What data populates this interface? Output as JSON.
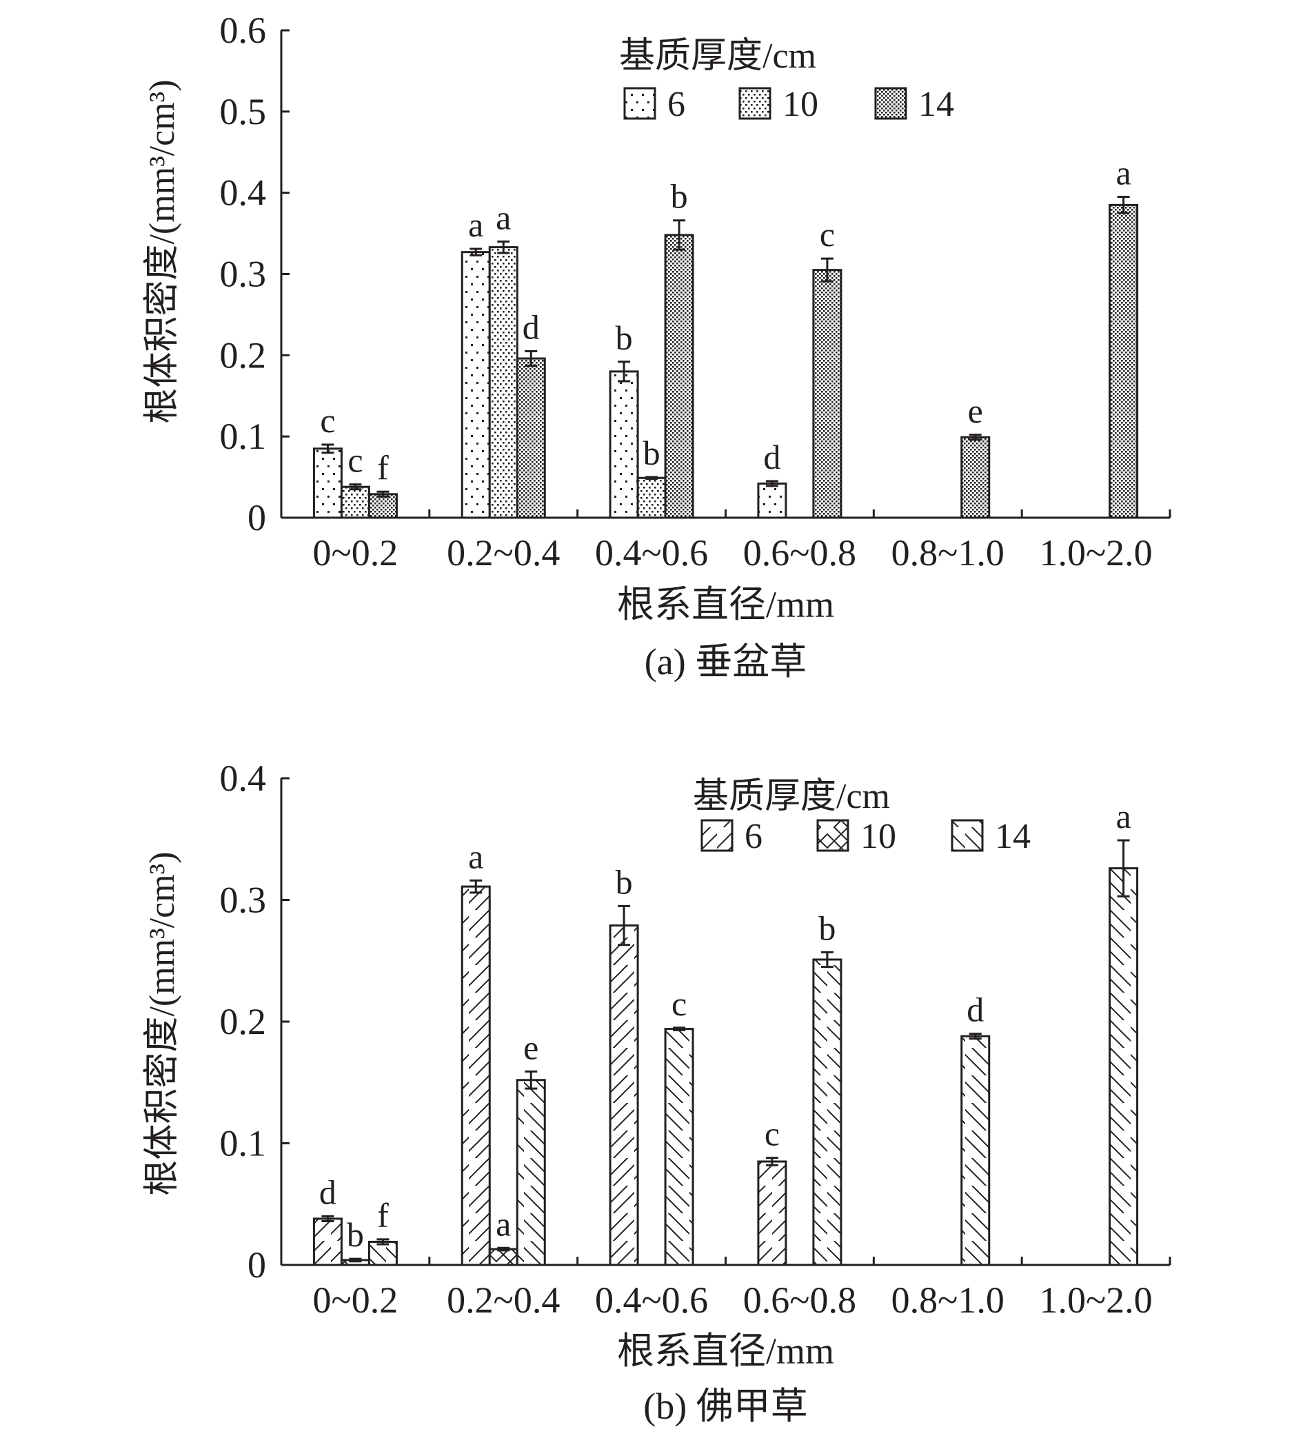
{
  "chart_data": [
    {
      "type": "bar",
      "caption": "(a) 垂盆草",
      "xlabel": "根系直径/mm",
      "ylabel": "根体积密度/(mm³/cm³)",
      "ylim": [
        0,
        0.6
      ],
      "yticks": [
        "0",
        "0.1",
        "0.2",
        "0.3",
        "0.4",
        "0.5",
        "0.6"
      ],
      "categories": [
        "0~0.2",
        "0.2~0.4",
        "0.4~0.6",
        "0.6~0.8",
        "0.8~1.0",
        "1.0~2.0"
      ],
      "legend_title": "基质厚度/cm",
      "legend_placement": "top-center",
      "series": [
        {
          "name": "6",
          "pattern": "dots-sparse",
          "values": [
            0.085,
            0.327,
            0.18,
            0.042,
            null,
            null
          ],
          "errors": [
            0.005,
            0.004,
            0.012,
            0.003,
            null,
            null
          ],
          "letters": [
            "c",
            "a",
            "b",
            "d",
            null,
            null
          ]
        },
        {
          "name": "10",
          "pattern": "dots-medium",
          "values": [
            0.038,
            0.333,
            0.049,
            null,
            null,
            null
          ],
          "errors": [
            0.003,
            0.007,
            0.001,
            null,
            null,
            null
          ],
          "letters": [
            "c",
            "a",
            "b",
            null,
            null,
            null
          ]
        },
        {
          "name": "14",
          "pattern": "dots-dense",
          "values": [
            0.029,
            0.196,
            0.348,
            0.305,
            0.099,
            0.385
          ],
          "errors": [
            0.003,
            0.009,
            0.018,
            0.014,
            0.003,
            0.01
          ],
          "letters": [
            "f",
            "d",
            "b",
            "c",
            "e",
            "a"
          ]
        }
      ]
    },
    {
      "type": "bar",
      "caption": "(b) 佛甲草",
      "xlabel": "根系直径/mm",
      "ylabel": "根体积密度/(mm³/cm³)",
      "ylim": [
        0,
        0.4
      ],
      "yticks": [
        "0",
        "0.1",
        "0.2",
        "0.3",
        "0.4"
      ],
      "categories": [
        "0~0.2",
        "0.2~0.4",
        "0.4~0.6",
        "0.6~0.8",
        "0.8~1.0",
        "1.0~2.0"
      ],
      "legend_title": "基质厚度/cm",
      "legend_placement": "top-center",
      "series": [
        {
          "name": "6",
          "pattern": "hatch-forward",
          "values": [
            0.038,
            0.311,
            0.279,
            0.085,
            null,
            null
          ],
          "errors": [
            0.002,
            0.005,
            0.016,
            0.003,
            null,
            null
          ],
          "letters": [
            "d",
            "a",
            "b",
            "c",
            null,
            null
          ]
        },
        {
          "name": "10",
          "pattern": "hatch-cross",
          "values": [
            0.004,
            0.013,
            null,
            null,
            null,
            null
          ],
          "errors": [
            0.001,
            0.001,
            null,
            null,
            null,
            null
          ],
          "letters": [
            "b",
            "a",
            null,
            null,
            null,
            null
          ]
        },
        {
          "name": "14",
          "pattern": "hatch-back",
          "values": [
            0.019,
            0.152,
            0.194,
            0.251,
            0.188,
            0.326
          ],
          "errors": [
            0.002,
            0.007,
            0.001,
            0.006,
            0.002,
            0.023
          ],
          "letters": [
            "f",
            "e",
            "c",
            "b",
            "d",
            "a"
          ]
        }
      ]
    }
  ]
}
